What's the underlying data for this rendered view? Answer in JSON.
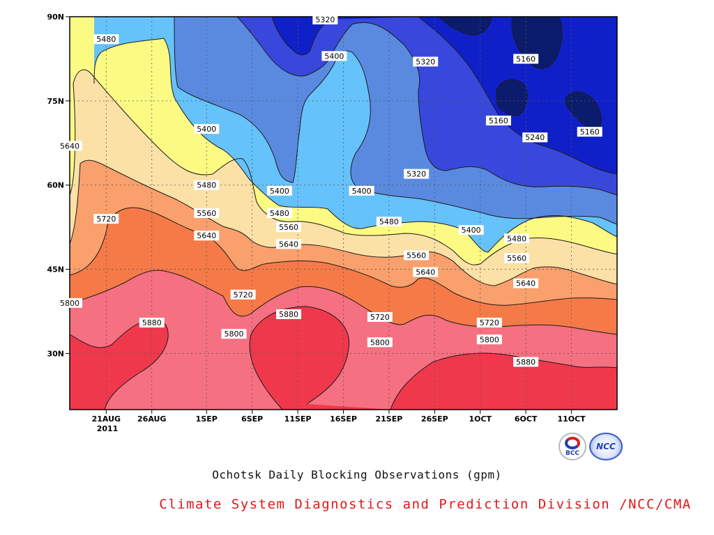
{
  "title": "Ochotsk Daily Blocking Observations (gpm)",
  "credit": "Climate System Diagnostics and Prediction Division /NCC/CMA",
  "logos": [
    {
      "name": "bcc-logo",
      "text": "BCC"
    },
    {
      "name": "ncc-logo",
      "text": "NCC"
    }
  ],
  "chart_data": {
    "type": "heatmap",
    "subtype": "filled-contour (latitude vs time)",
    "title": "Ochotsk Daily Blocking Observations (gpm)",
    "x_axis": {
      "ticks": [
        "21AUG",
        "26AUG",
        "1SEP",
        "6SEP",
        "11SEP",
        "16SEP",
        "21SEP",
        "26SEP",
        "1OCT",
        "6OCT",
        "11OCT"
      ],
      "year_label": "2011",
      "range": [
        "2011-08-17",
        "2011-10-16"
      ]
    },
    "y_axis": {
      "ticks": [
        "30N",
        "45N",
        "60N",
        "75N",
        "90N"
      ],
      "range": [
        20,
        90
      ],
      "unit": "degrees latitude"
    },
    "contour_levels": [
      5160,
      5240,
      5320,
      5400,
      5480,
      5560,
      5640,
      5720,
      5800,
      5880
    ],
    "fill_colors": {
      "lt5160": "#0c1c6c",
      "5160": "#1020c8",
      "5240": "#3848dc",
      "5320": "#5a8ae0",
      "5400": "#66c2fa",
      "5480": "#fbfb84",
      "5560": "#fbe1a6",
      "5640": "#f9a06c",
      "5720": "#f67a48",
      "5800": "#f57080",
      "5880": "#f0384c"
    },
    "contour_labels": [
      {
        "text": "5480",
        "date": "2011-08-21",
        "lat": 86
      },
      {
        "text": "5640",
        "date": "2011-08-17",
        "lat": 67
      },
      {
        "text": "5720",
        "date": "2011-08-21",
        "lat": 54
      },
      {
        "text": "5800",
        "date": "2011-08-17",
        "lat": 39
      },
      {
        "text": "5880",
        "date": "2011-08-26",
        "lat": 35.5
      },
      {
        "text": "5400",
        "date": "2011-09-01",
        "lat": 70
      },
      {
        "text": "5480",
        "date": "2011-09-01",
        "lat": 60
      },
      {
        "text": "5560",
        "date": "2011-09-01",
        "lat": 55
      },
      {
        "text": "5640",
        "date": "2011-09-01",
        "lat": 51
      },
      {
        "text": "5720",
        "date": "2011-09-05",
        "lat": 40.5
      },
      {
        "text": "5800",
        "date": "2011-09-04",
        "lat": 33.5
      },
      {
        "text": "5880",
        "date": "2011-09-10",
        "lat": 37
      },
      {
        "text": "5320",
        "date": "2011-09-14",
        "lat": 89.5
      },
      {
        "text": "5400",
        "date": "2011-09-15",
        "lat": 83
      },
      {
        "text": "5400",
        "date": "2011-09-09",
        "lat": 59
      },
      {
        "text": "5480",
        "date": "2011-09-09",
        "lat": 55
      },
      {
        "text": "5560",
        "date": "2011-09-10",
        "lat": 52.5
      },
      {
        "text": "5640",
        "date": "2011-09-10",
        "lat": 49.5
      },
      {
        "text": "5400",
        "date": "2011-09-18",
        "lat": 59
      },
      {
        "text": "5320",
        "date": "2011-09-25",
        "lat": 82
      },
      {
        "text": "5320",
        "date": "2011-09-24",
        "lat": 62
      },
      {
        "text": "5480",
        "date": "2011-09-21",
        "lat": 53.5
      },
      {
        "text": "5560",
        "date": "2011-09-24",
        "lat": 47.5
      },
      {
        "text": "5640",
        "date": "2011-09-25",
        "lat": 44.5
      },
      {
        "text": "5720",
        "date": "2011-09-20",
        "lat": 36.5
      },
      {
        "text": "5800",
        "date": "2011-09-20",
        "lat": 32
      },
      {
        "text": "5400",
        "date": "2011-09-30",
        "lat": 52
      },
      {
        "text": "5480",
        "date": "2011-10-05",
        "lat": 50.5
      },
      {
        "text": "5560",
        "date": "2011-10-05",
        "lat": 47
      },
      {
        "text": "5640",
        "date": "2011-10-06",
        "lat": 42.5
      },
      {
        "text": "5720",
        "date": "2011-10-02",
        "lat": 35.5
      },
      {
        "text": "5800",
        "date": "2011-10-02",
        "lat": 32.5
      },
      {
        "text": "5880",
        "date": "2011-10-06",
        "lat": 28.5
      },
      {
        "text": "5160",
        "date": "2011-10-06",
        "lat": 82.5
      },
      {
        "text": "5160",
        "date": "2011-10-03",
        "lat": 71.5
      },
      {
        "text": "5240",
        "date": "2011-10-07",
        "lat": 68.5
      },
      {
        "text": "5160",
        "date": "2011-10-13",
        "lat": 69.5
      }
    ],
    "grid": true,
    "legend": "none"
  }
}
